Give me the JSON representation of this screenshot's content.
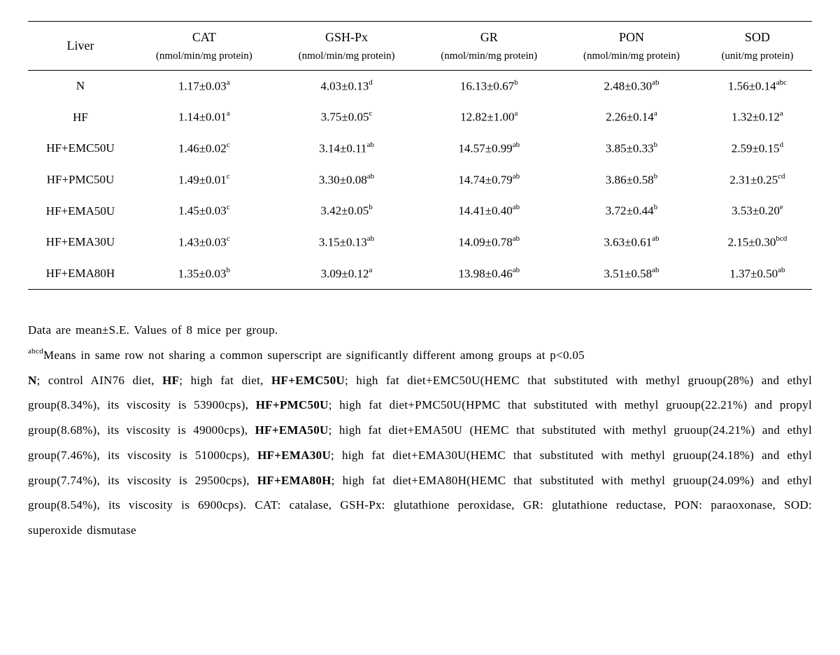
{
  "table": {
    "rowHeaderMain": "Liver",
    "columns": [
      {
        "main": "CAT",
        "sub": "(nmol/min/mg protein)"
      },
      {
        "main": "GSH-Px",
        "sub": "(nmol/min/mg protein)"
      },
      {
        "main": "GR",
        "sub": "(nmol/min/mg protein)"
      },
      {
        "main": "PON",
        "sub": "(nmol/min/mg protein)"
      },
      {
        "main": "SOD",
        "sub": "(unit/mg protein)"
      }
    ],
    "rows": [
      {
        "label": "N",
        "cells": [
          {
            "v": "1.17±0.03",
            "s": "a"
          },
          {
            "v": "4.03±0.13",
            "s": "d"
          },
          {
            "v": "16.13±0.67",
            "s": "b"
          },
          {
            "v": "2.48±0.30",
            "s": "ab"
          },
          {
            "v": "1.56±0.14",
            "s": "abc"
          }
        ]
      },
      {
        "label": "HF",
        "cells": [
          {
            "v": "1.14±0.01",
            "s": "a"
          },
          {
            "v": "3.75±0.05",
            "s": "c"
          },
          {
            "v": "12.82±1.00",
            "s": "a"
          },
          {
            "v": "2.26±0.14",
            "s": "a"
          },
          {
            "v": "1.32±0.12",
            "s": "a"
          }
        ]
      },
      {
        "label": "HF+EMC50U",
        "cells": [
          {
            "v": "1.46±0.02",
            "s": "c"
          },
          {
            "v": "3.14±0.11",
            "s": "ab"
          },
          {
            "v": "14.57±0.99",
            "s": "ab"
          },
          {
            "v": "3.85±0.33",
            "s": "b"
          },
          {
            "v": "2.59±0.15",
            "s": "d"
          }
        ]
      },
      {
        "label": "HF+PMC50U",
        "cells": [
          {
            "v": "1.49±0.01",
            "s": "c"
          },
          {
            "v": "3.30±0.08",
            "s": "ab"
          },
          {
            "v": "14.74±0.79",
            "s": "ab"
          },
          {
            "v": "3.86±0.58",
            "s": "b"
          },
          {
            "v": "2.31±0.25",
            "s": "cd"
          }
        ]
      },
      {
        "label": "HF+EMA50U",
        "cells": [
          {
            "v": "1.45±0.03",
            "s": "c"
          },
          {
            "v": "3.42±0.05",
            "s": "b"
          },
          {
            "v": "14.41±0.40",
            "s": "ab"
          },
          {
            "v": "3.72±0.44",
            "s": "b"
          },
          {
            "v": "3.53±0.20",
            "s": "e"
          }
        ]
      },
      {
        "label": "HF+EMA30U",
        "cells": [
          {
            "v": "1.43±0.03",
            "s": "c"
          },
          {
            "v": "3.15±0.13",
            "s": "ab"
          },
          {
            "v": "14.09±0.78",
            "s": "ab"
          },
          {
            "v": "3.63±0.61",
            "s": "ab"
          },
          {
            "v": "2.15±0.30",
            "s": "bcd"
          }
        ]
      },
      {
        "label": "HF+EMA80H",
        "cells": [
          {
            "v": "1.35±0.03",
            "s": "b"
          },
          {
            "v": "3.09±0.12",
            "s": "a"
          },
          {
            "v": "13.98±0.46",
            "s": "ab"
          },
          {
            "v": "3.51±0.58",
            "s": "ab"
          },
          {
            "v": "1.37±0.50",
            "s": "ab"
          }
        ]
      }
    ]
  },
  "footnotes": {
    "line1": "Data are mean±S.E. Values of 8 mice per group.",
    "line2_sup": "abcd",
    "line2_rest": "Means in same row not sharing a common superscript are significantly different among groups at p<0.05",
    "mainSegments": [
      {
        "b": true,
        "t": "N"
      },
      {
        "b": false,
        "t": "; control AIN76 diet, "
      },
      {
        "b": true,
        "t": "HF"
      },
      {
        "b": false,
        "t": "; high fat diet, "
      },
      {
        "b": true,
        "t": "HF+EMC50U"
      },
      {
        "b": false,
        "t": "; high fat diet+EMC50U(HEMC that substituted with methyl gruoup(28%) and ethyl group(8.34%), its viscosity is 53900cps), "
      },
      {
        "b": true,
        "t": "HF+PMC50U"
      },
      {
        "b": false,
        "t": "; high fat diet+PMC50U(HPMC that substituted with methyl gruoup(22.21%) and propyl group(8.68%), its viscosity is 49000cps), "
      },
      {
        "b": true,
        "t": "HF+EMA50U"
      },
      {
        "b": false,
        "t": "; high fat diet+EMA50U (HEMC that substituted with methyl gruoup(24.21%) and ethyl group(7.46%), its viscosity is 51000cps), "
      },
      {
        "b": true,
        "t": "HF+EMA30U"
      },
      {
        "b": false,
        "t": "; high fat diet+EMA30U(HEMC that substituted with methyl gruoup(24.18%) and ethyl group(7.74%), its viscosity is 29500cps), "
      },
      {
        "b": true,
        "t": "HF+EMA80H"
      },
      {
        "b": false,
        "t": "; high fat diet+EMA80H(HEMC that substituted with methyl gruoup(24.09%) and ethyl group(8.54%), its viscosity is 6900cps). CAT: catalase, GSH-Px: glutathione peroxidase, GR: glutathione reductase, PON: paraoxonase, SOD: superoxide dismutase"
      }
    ]
  },
  "style": {
    "text_color": "#000000",
    "background_color": "#ffffff",
    "border_color": "#000000",
    "header_fontsize": 18,
    "body_fontsize": 17,
    "sup_fontsize": 11,
    "footnote_lineheight": 2.1
  }
}
